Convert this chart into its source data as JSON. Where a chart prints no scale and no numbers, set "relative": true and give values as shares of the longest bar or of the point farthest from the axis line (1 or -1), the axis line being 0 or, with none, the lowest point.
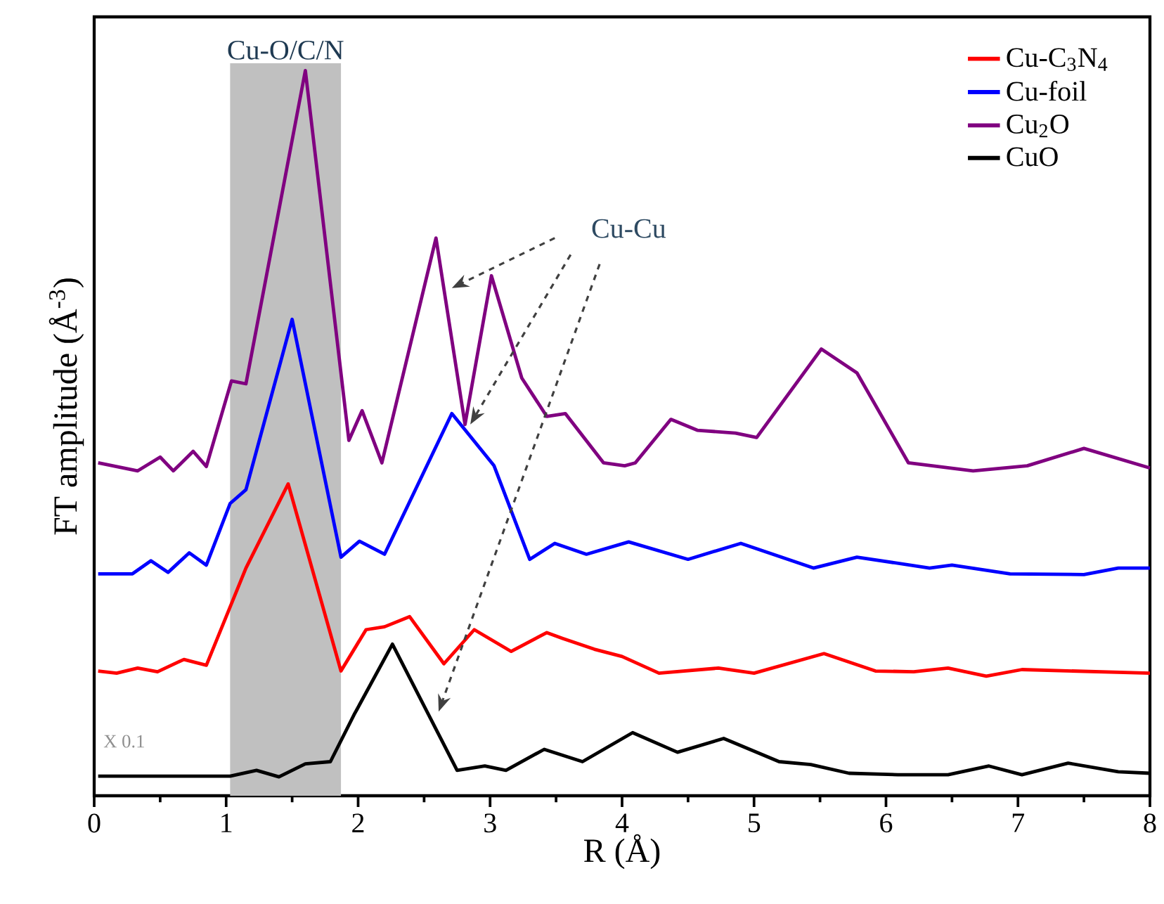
{
  "chart_data": {
    "type": "line",
    "xlabel": "R (Å)",
    "ylabel": "FT amplitude (Å$^{-3}$)",
    "relative": true,
    "xlim": [
      0,
      8
    ],
    "xticks": [
      0,
      1,
      2,
      3,
      4,
      5,
      6,
      7,
      8
    ],
    "legend": "top right",
    "line_style": "solid",
    "bands": [
      {
        "axis": "x",
        "from": 1.03,
        "to": 1.87,
        "label": "Cu-O/C/N",
        "color": "#c0c0c0"
      }
    ],
    "annotations": [
      "Cu-Cu",
      "X 0.1"
    ],
    "series": [
      {
        "name": "Cu-C$_{3}$N$_{4}$",
        "color": "#ff0000",
        "x": [
          0.03,
          0.17,
          0.33,
          0.48,
          0.68,
          0.85,
          1.15,
          1.47,
          1.87,
          2.06,
          2.2,
          2.39,
          2.65,
          2.88,
          3.16,
          3.43,
          3.55,
          3.79,
          4.0,
          4.28,
          4.73,
          5.0,
          5.53,
          5.92,
          6.21,
          6.47,
          6.76,
          7.03,
          8.0
        ],
        "values": [
          0.172,
          0.169,
          0.176,
          0.171,
          0.188,
          0.18,
          0.314,
          0.43,
          0.172,
          0.229,
          0.233,
          0.247,
          0.182,
          0.229,
          0.199,
          0.225,
          0.217,
          0.202,
          0.192,
          0.169,
          0.176,
          0.169,
          0.196,
          0.172,
          0.171,
          0.176,
          0.165,
          0.174,
          0.169
        ]
      },
      {
        "name": "Cu-foil",
        "color": "#0000ff",
        "x": [
          0.03,
          0.29,
          0.43,
          0.56,
          0.72,
          0.85,
          1.03,
          1.15,
          1.5,
          1.87,
          2.01,
          2.2,
          2.71,
          3.03,
          3.3,
          3.49,
          3.73,
          4.05,
          4.5,
          4.9,
          5.45,
          5.78,
          6.33,
          6.5,
          6.94,
          7.5,
          7.76,
          8.0
        ],
        "values": [
          0.306,
          0.306,
          0.324,
          0.308,
          0.335,
          0.318,
          0.403,
          0.422,
          0.657,
          0.329,
          0.351,
          0.333,
          0.527,
          0.455,
          0.326,
          0.348,
          0.333,
          0.35,
          0.326,
          0.348,
          0.314,
          0.329,
          0.314,
          0.318,
          0.306,
          0.305,
          0.314,
          0.314
        ]
      },
      {
        "name": "Cu$_{2}$O",
        "color": "#800080",
        "x": [
          0.03,
          0.33,
          0.5,
          0.6,
          0.75,
          0.85,
          1.04,
          1.15,
          1.6,
          1.93,
          2.03,
          2.18,
          2.59,
          2.81,
          3.01,
          3.24,
          3.43,
          3.57,
          3.86,
          4.02,
          4.1,
          4.37,
          4.57,
          4.86,
          5.02,
          5.51,
          5.78,
          6.17,
          6.66,
          7.07,
          7.5,
          8.0
        ],
        "values": [
          0.459,
          0.448,
          0.467,
          0.448,
          0.475,
          0.454,
          0.572,
          0.568,
          1.0,
          0.49,
          0.531,
          0.459,
          0.769,
          0.512,
          0.717,
          0.576,
          0.523,
          0.527,
          0.459,
          0.455,
          0.459,
          0.519,
          0.504,
          0.5,
          0.494,
          0.616,
          0.583,
          0.459,
          0.448,
          0.455,
          0.479,
          0.452
        ]
      },
      {
        "name": "CuO",
        "color": "#000000",
        "x": [
          0.03,
          1.03,
          1.23,
          1.4,
          1.6,
          1.79,
          1.97,
          2.26,
          2.55,
          2.75,
          2.96,
          3.12,
          3.41,
          3.7,
          4.08,
          4.42,
          4.77,
          5.19,
          5.43,
          5.72,
          6.09,
          6.47,
          6.78,
          7.03,
          7.38,
          7.76,
          8.0
        ],
        "values": [
          0.027,
          0.027,
          0.035,
          0.026,
          0.044,
          0.047,
          0.112,
          0.209,
          0.106,
          0.035,
          0.041,
          0.035,
          0.064,
          0.047,
          0.087,
          0.06,
          0.079,
          0.047,
          0.043,
          0.031,
          0.029,
          0.029,
          0.041,
          0.029,
          0.045,
          0.033,
          0.031
        ]
      }
    ]
  }
}
